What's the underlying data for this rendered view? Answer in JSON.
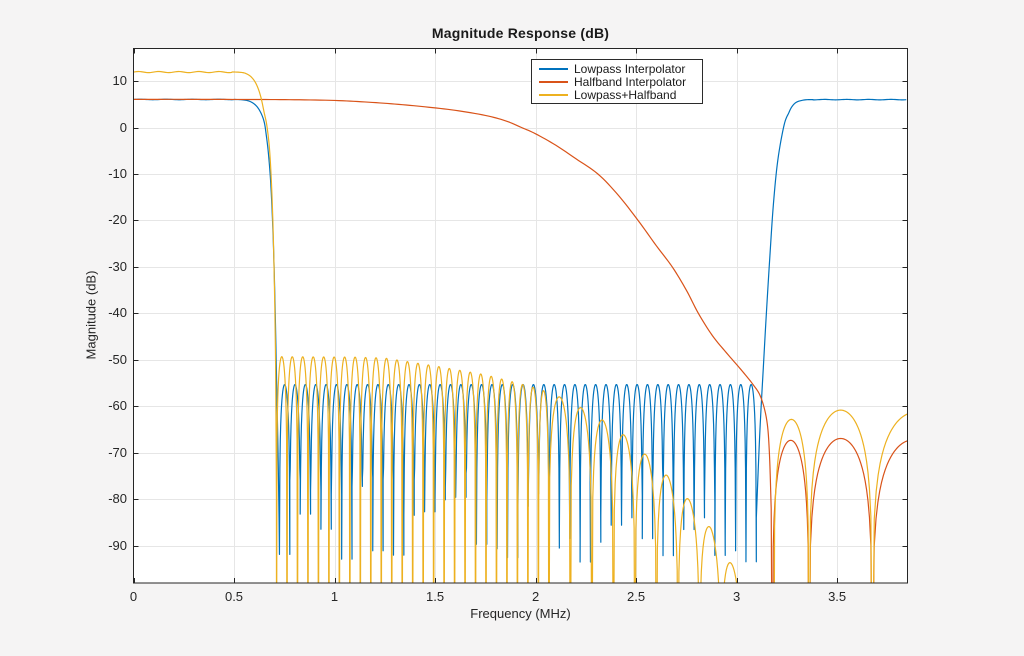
{
  "figure": {
    "background": "#f5f4f4",
    "plot_background": "#ffffff",
    "axis_color": "#252525",
    "grid_color": "#e6e6e6",
    "text_color": "#262626"
  },
  "chart_data": {
    "type": "line",
    "title": "Magnitude Response (dB)",
    "xlabel": "Frequency (MHz)",
    "ylabel": "Magnitude (dB)",
    "xlim": [
      0,
      3.85
    ],
    "ylim": [
      -98,
      17
    ],
    "grid": true,
    "xticks": [
      0,
      0.5,
      1,
      1.5,
      2,
      2.5,
      3,
      3.5
    ],
    "xtick_labels": [
      "0",
      "0.5",
      "1",
      "1.5",
      "2",
      "2.5",
      "3",
      "3.5"
    ],
    "yticks": [
      10,
      0,
      -10,
      -20,
      -30,
      -40,
      -50,
      -60,
      -70,
      -80,
      -90
    ],
    "ytick_labels": [
      "10",
      "0",
      "-10",
      "-20",
      "-30",
      "-40",
      "-50",
      "-60",
      "-70",
      "-80",
      "-90"
    ],
    "legend": {
      "position": "top-right"
    },
    "series": [
      {
        "name": "Lowpass Interpolator",
        "color": "#0072BD",
        "summary": "6 dB passband 0-0.6 MHz, steep cutoff at ~0.7 MHz, equiripple stopband lobes at -55 dB from 0.73 to 3.1 MHz, image passband at 6 dB from 3.3 to 3.85 MHz",
        "segments": [
          {
            "type": "flat",
            "from": 0,
            "to": 0.5,
            "level": 6.03,
            "ripple_amp": 0.05,
            "ripple_period": 0.13
          },
          {
            "type": "spline",
            "points": [
              [
                0.5,
                6.03
              ],
              [
                0.545,
                5.95
              ],
              [
                0.58,
                5.6
              ],
              [
                0.61,
                4.7
              ],
              [
                0.633,
                3.2
              ],
              [
                0.65,
                1.2
              ],
              [
                0.66,
                -1.5
              ],
              [
                0.672,
                -6
              ],
              [
                0.684,
                -13
              ],
              [
                0.695,
                -24
              ],
              [
                0.704,
                -38
              ],
              [
                0.712,
                -55
              ],
              [
                0.719,
                -70
              ],
              [
                0.724,
                -84
              ]
            ]
          },
          {
            "type": "lobes",
            "from": 0.726,
            "to": 3.098,
            "spacing": 0.0516,
            "envelope": [
              [
                0.726,
                -55.3
              ],
              [
                3.098,
                -55.3
              ]
            ],
            "null_floor": [
              -94,
              -74
            ],
            "seed": 7
          },
          {
            "type": "spline",
            "points": [
              [
                3.098,
                -84
              ],
              [
                3.115,
                -66
              ],
              [
                3.135,
                -50
              ],
              [
                3.148,
                -40
              ],
              [
                3.165,
                -28
              ],
              [
                3.183,
                -16.5
              ],
              [
                3.205,
                -7
              ],
              [
                3.236,
                0.5
              ],
              [
                3.26,
                3.2
              ],
              [
                3.277,
                4.6
              ],
              [
                3.3,
                5.5
              ],
              [
                3.34,
                5.95
              ],
              [
                3.38,
                6.0
              ]
            ]
          },
          {
            "type": "flat",
            "from": 3.38,
            "to": 3.85,
            "level": 6.0,
            "ripple_amp": 0.05,
            "ripple_period": 0.11
          }
        ]
      },
      {
        "name": "Halfband Interpolator",
        "color": "#D95319",
        "summary": "6 dB at DC, slow monotonic rolloff crossing 0 dB at ~1.93 MHz, -40 dB at 2.81 MHz, null at 3.18 MHz, stopband lobes near -67 dB with nulls at 3.36 and 3.68 MHz",
        "segments": [
          {
            "type": "spline",
            "points": [
              [
                0,
                6.06
              ],
              [
                0.3,
                6.06
              ],
              [
                0.6,
                6.03
              ],
              [
                0.8,
                5.98
              ],
              [
                1.0,
                5.82
              ],
              [
                1.15,
                5.5
              ],
              [
                1.3,
                5.05
              ],
              [
                1.45,
                4.45
              ],
              [
                1.6,
                3.7
              ],
              [
                1.75,
                2.6
              ],
              [
                1.85,
                1.45
              ],
              [
                1.93,
                0
              ],
              [
                2.0,
                -1.35
              ],
              [
                2.1,
                -3.8
              ],
              [
                2.2,
                -6.7
              ],
              [
                2.31,
                -10
              ],
              [
                2.41,
                -14.5
              ],
              [
                2.51,
                -20
              ],
              [
                2.6,
                -25.4
              ],
              [
                2.68,
                -30
              ],
              [
                2.75,
                -35
              ],
              [
                2.81,
                -40
              ],
              [
                2.88,
                -44.8
              ],
              [
                2.95,
                -48.5
              ],
              [
                3.02,
                -52
              ],
              [
                3.08,
                -55.2
              ],
              [
                3.12,
                -58
              ],
              [
                3.15,
                -63
              ],
              [
                3.163,
                -70
              ],
              [
                3.172,
                -82
              ]
            ]
          },
          {
            "type": "arcs",
            "lobes": [
              [
                3.178,
                3.36,
                -67.3
              ],
              [
                3.36,
                3.675,
                -66.9
              ],
              [
                3.675,
                4.08,
                -67.2
              ]
            ]
          }
        ]
      },
      {
        "name": "Lowpass+Halfband",
        "color": "#EDB120",
        "summary": "12 dB passband 0-0.55 MHz, steep cutoff at ~0.7 MHz, stopband lobes from -49 dB decaying below -90 dB by 3 MHz, upper lobes near -61 dB after 3.2 MHz",
        "segments": [
          {
            "type": "flat",
            "from": 0,
            "to": 0.49,
            "level": 11.93,
            "ripple_amp": 0.12,
            "ripple_period": 0.1
          },
          {
            "type": "spline",
            "points": [
              [
                0.49,
                11.95
              ],
              [
                0.53,
                11.88
              ],
              [
                0.557,
                11.65
              ],
              [
                0.585,
                10.9
              ],
              [
                0.61,
                9.4
              ],
              [
                0.632,
                6.8
              ],
              [
                0.65,
                3.2
              ],
              [
                0.664,
                0.2
              ],
              [
                0.678,
                -5.5
              ],
              [
                0.69,
                -16
              ],
              [
                0.699,
                -30
              ],
              [
                0.706,
                -48
              ],
              [
                0.709,
                -65
              ],
              [
                0.711,
                -80
              ]
            ]
          },
          {
            "type": "lobes",
            "from": 0.7115,
            "to": 2.066,
            "spacing": 0.0521,
            "envelope": [
              [
                0.7115,
                -49.3
              ],
              [
                1.1,
                -49.4
              ],
              [
                1.25,
                -49.6
              ],
              [
                1.5,
                -51.3
              ],
              [
                1.75,
                -53.2
              ],
              [
                2.0,
                -56.0
              ],
              [
                2.066,
                -57.0
              ]
            ],
            "null_floor": [
              -130,
              -130
            ],
            "seed": 3
          },
          {
            "type": "lobes",
            "from": 2.066,
            "to": 3.03,
            "spacing": 0.1071,
            "envelope": [
              [
                2.066,
                -57.2
              ],
              [
                2.15,
                -58.4
              ],
              [
                2.4,
                -64.6
              ],
              [
                2.6,
                -72.4
              ],
              [
                2.74,
                -78.8
              ],
              [
                2.87,
                -86.1
              ],
              [
                2.97,
                -93.5
              ],
              [
                3.03,
                -98
              ]
            ],
            "null_floor": [
              -130,
              -130
            ],
            "seed": 5
          },
          {
            "type": "arcs",
            "lobes": [
              [
                3.185,
                3.36,
                -62.8
              ],
              [
                3.36,
                3.675,
                -60.8
              ],
              [
                3.675,
                4.1,
                -61.3
              ]
            ]
          }
        ]
      }
    ]
  }
}
